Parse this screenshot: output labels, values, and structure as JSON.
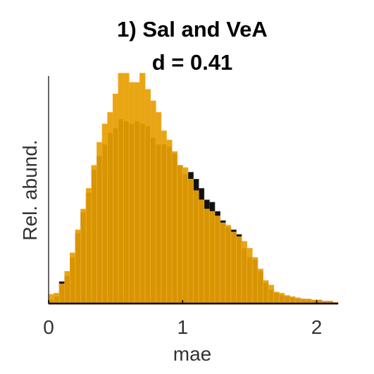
{
  "chart_data": {
    "type": "bar",
    "title": "1) Sal and VeA",
    "subtitle": "d = 0.41",
    "xlabel": "mae",
    "ylabel": "Rel. abund.",
    "xlim": [
      0,
      2.16
    ],
    "ylim": [
      0,
      1.0
    ],
    "xticks": [
      0,
      1,
      2
    ],
    "xtick_labels": [
      "0",
      "1",
      "2"
    ],
    "bin_width": 0.04,
    "bin_start": 0.0,
    "grid": false,
    "legend": "none",
    "series": [
      {
        "color": "#111111",
        "values": [
          0.015,
          0.03,
          0.095,
          0.12,
          0.2,
          0.305,
          0.395,
          0.48,
          0.58,
          0.64,
          0.69,
          0.74,
          0.76,
          0.8,
          0.79,
          0.78,
          0.79,
          0.78,
          0.77,
          0.72,
          0.69,
          0.69,
          0.68,
          0.65,
          0.6,
          0.56,
          0.57,
          0.54,
          0.5,
          0.45,
          0.44,
          0.4,
          0.36,
          0.33,
          0.32,
          0.3,
          0.24,
          0.2,
          0.19,
          0.14,
          0.09,
          0.06,
          0.045,
          0.035,
          0.03,
          0.025,
          0.02,
          0.02,
          0.015,
          0.015,
          0.015,
          0.01,
          0.01,
          0.005
        ]
      },
      {
        "color": "#E69F00",
        "values": [
          0.04,
          0.045,
          0.085,
          0.14,
          0.22,
          0.32,
          0.41,
          0.5,
          0.6,
          0.7,
          0.78,
          0.83,
          0.91,
          1.0,
          1.0,
          0.96,
          0.96,
          1.0,
          0.93,
          0.88,
          0.83,
          0.75,
          0.71,
          0.66,
          0.6,
          0.59,
          0.54,
          0.49,
          0.45,
          0.41,
          0.4,
          0.38,
          0.35,
          0.34,
          0.31,
          0.29,
          0.27,
          0.24,
          0.2,
          0.15,
          0.1,
          0.08,
          0.05,
          0.045,
          0.035,
          0.03,
          0.025,
          0.02,
          0.02,
          0.015,
          0.015,
          0.01,
          0.01,
          0.005
        ]
      }
    ]
  }
}
